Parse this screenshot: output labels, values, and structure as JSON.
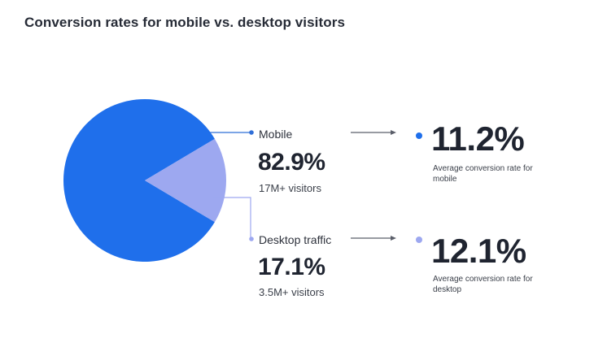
{
  "title": "Conversion rates for mobile vs. desktop visitors",
  "colors": {
    "mobile": "#1f6feb",
    "desktop": "#9da8f0",
    "line": "#5b5f6a"
  },
  "chart_data": {
    "type": "pie",
    "title": "Conversion rates for mobile vs. desktop visitors",
    "slices": [
      {
        "label": "Mobile",
        "value": 82.9,
        "color": "#1f6feb"
      },
      {
        "label": "Desktop traffic",
        "value": 17.1,
        "color": "#9da8f0"
      }
    ]
  },
  "segments": [
    {
      "label": "Mobile",
      "share": "82.9%",
      "visitors": "17M+ visitors",
      "rate": "11.2%",
      "rate_desc": "Average conversion rate for mobile"
    },
    {
      "label": "Desktop traffic",
      "share": "17.1%",
      "visitors": "3.5M+ visitors",
      "rate": "12.1%",
      "rate_desc": "Average conversion rate for desktop"
    }
  ]
}
